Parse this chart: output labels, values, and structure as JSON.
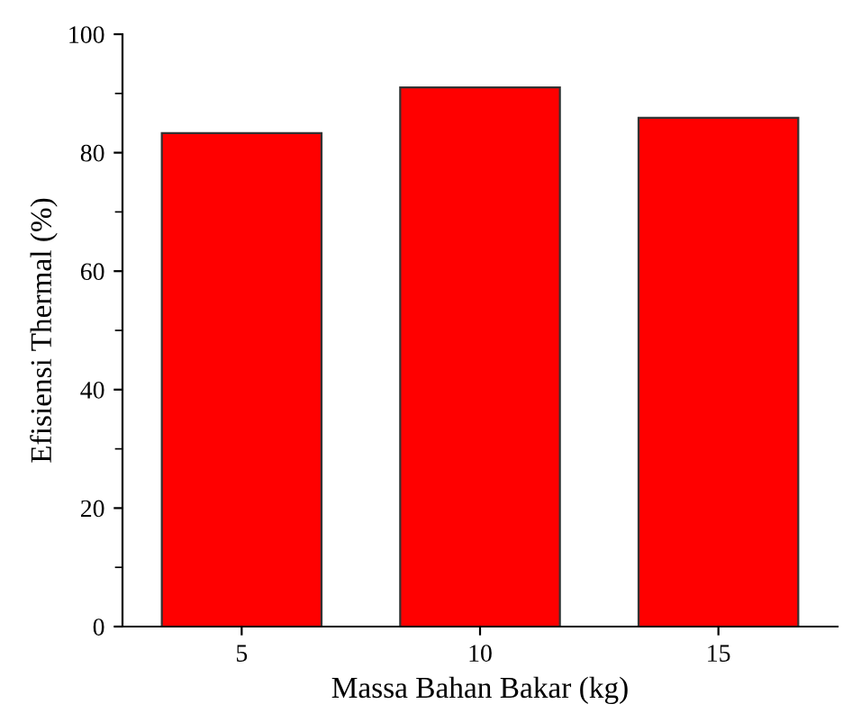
{
  "chart_data": {
    "type": "bar",
    "xlabel": "Massa Bahan Bakar (kg)",
    "ylabel": "Efisiensi Thermal (%)",
    "categories": [
      "5",
      "10",
      "15"
    ],
    "values": [
      83.3,
      91.0,
      85.9
    ],
    "color": "#ff0000",
    "ylim": [
      0,
      100
    ],
    "yticks": [
      0,
      20,
      40,
      60,
      80,
      100
    ],
    "grid": false,
    "legend": false
  }
}
